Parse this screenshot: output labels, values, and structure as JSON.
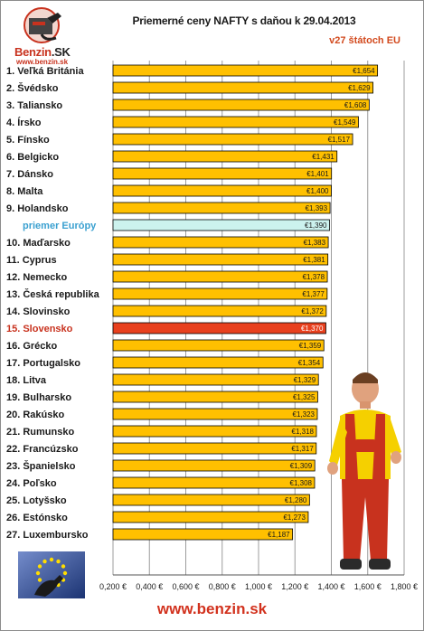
{
  "header": {
    "title": "Priemerné ceny NAFTY s daňou k 29.04.2013",
    "subtitle": "v27 štátoch EU"
  },
  "logo": {
    "name": "Benzin",
    "suffix": ".SK",
    "url": "www.benzin.sk"
  },
  "footer": {
    "url": "www.benzin.sk"
  },
  "chart_data": {
    "type": "bar",
    "orientation": "horizontal",
    "categories": [
      "1. Veľká Británia",
      "2. Švédsko",
      "3. Taliansko",
      "4. Írsko",
      "5. Fínsko",
      "6. Belgicko",
      "7. Dánsko",
      "8. Malta",
      "9. Holandsko",
      "priemer Európy",
      "10. Maďarsko",
      "11. Cyprus",
      "12. Nemecko",
      "13. Česká republika",
      "14. Slovinsko",
      "15. Slovensko",
      "16. Grécko",
      "17. Portugalsko",
      "18. Litva",
      "19. Bulharsko",
      "20. Rakúsko",
      "21. Rumunsko",
      "22. Francúzsko",
      "23. Španielsko",
      "24. Poľsko",
      "25. Lotyšsko",
      "26. Estónsko",
      "27. Luxembursko"
    ],
    "values": [
      1.654,
      1.629,
      1.608,
      1.549,
      1.517,
      1.431,
      1.401,
      1.4,
      1.393,
      1.39,
      1.383,
      1.381,
      1.378,
      1.377,
      1.372,
      1.37,
      1.359,
      1.354,
      1.329,
      1.325,
      1.323,
      1.318,
      1.317,
      1.309,
      1.308,
      1.28,
      1.273,
      1.187
    ],
    "value_labels": [
      "€1,654",
      "€1,629",
      "€1,608",
      "€1,549",
      "€1,517",
      "€1,431",
      "€1,401",
      "€1,400",
      "€1,393",
      "€1,390",
      "€1,383",
      "€1,381",
      "€1,378",
      "€1,377",
      "€1,372",
      "€1,370",
      "€1,359",
      "€1,354",
      "€1,329",
      "€1,325",
      "€1,323",
      "€1,318",
      "€1,317",
      "€1,309",
      "€1,308",
      "€1,280",
      "€1,273",
      "€1,187"
    ],
    "average_index": 9,
    "highlight_index": 15,
    "xlim": [
      0.2,
      1.8
    ],
    "xticks": [
      0.2,
      0.4,
      0.6,
      0.8,
      1.0,
      1.2,
      1.4,
      1.6,
      1.8
    ],
    "xtick_labels": [
      "0,200 €",
      "0,400 €",
      "0,600 €",
      "0,800 €",
      "1,000 €",
      "1,200 €",
      "1,400 €",
      "1,600 €",
      "1,800 €"
    ],
    "grid": true,
    "colors": {
      "bar": "#ffc000",
      "average_bar": "#ccf2ee",
      "highlight_bar": "#e8401e",
      "bar_border": "#000000",
      "grid": "#9c9c9c",
      "average_label": "#3aa0d0",
      "highlight_label": "#c8321e"
    }
  }
}
